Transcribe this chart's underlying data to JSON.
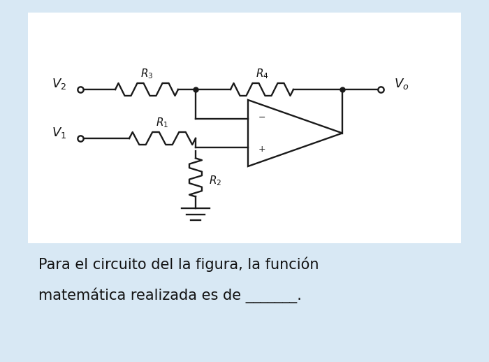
{
  "bg_color": "#d8e8f4",
  "panel_color": "#ffffff",
  "text_line1": "Para el circuito del la figura, la función",
  "text_line2": "matemática realizada es de _______.",
  "text_fontsize": 15,
  "circuit_color": "#1a1a1a",
  "label_color": "#111111"
}
